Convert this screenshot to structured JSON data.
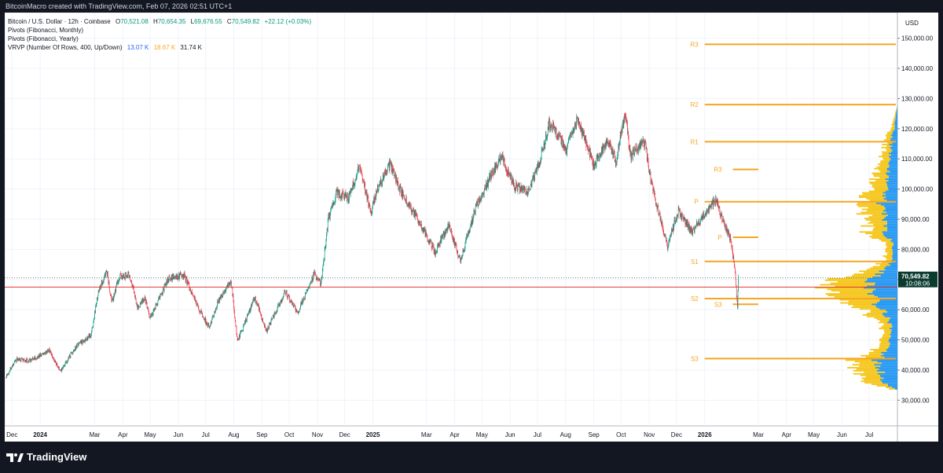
{
  "header": {
    "text": "BitcoinMacro created with TradingView.com, Feb 07, 2026 02:51 UTC+1"
  },
  "legend": {
    "symbol": "Bitcoin / U.S. Dollar · 12h · Coinbase",
    "open_label": "O",
    "open": "70,521.08",
    "high_label": "H",
    "high": "70,654.35",
    "low_label": "L",
    "low": "69,676.55",
    "close_label": "C",
    "close": "70,549.82",
    "change": "+22.12 (+0.03%)",
    "pivots_monthly": "Pivots (Fibonacci, Monthly)",
    "pivots_yearly": "Pivots (Fibonacci, Yearly)",
    "vrvp": "VRVP (Number Of Rows, 400, Up/Down)",
    "vrvp_up": "13.07 K",
    "vrvp_down": "18.67 K",
    "vrvp_total": "31.74 K"
  },
  "footer": {
    "brand": "TradingView"
  },
  "colors": {
    "up": "#089981",
    "down": "#f23645",
    "pivot": "#f5a623",
    "vol_up": "#2196f3",
    "vol_down": "#f5c518"
  },
  "chart_data": {
    "type": "candlestick",
    "currency_label": "USD",
    "y_ticks": [
      30000,
      40000,
      50000,
      60000,
      70000,
      80000,
      90000,
      100000,
      110000,
      120000,
      130000,
      140000,
      150000
    ],
    "y_tick_labels": [
      "30,000.00",
      "40,000.00",
      "50,000.00",
      "60,000.00",
      "70,000.00",
      "80,000.00",
      "90,000.00",
      "100,000.00",
      "110,000.00",
      "120,000.00",
      "130,000.00",
      "140,000.00",
      "150,000.00"
    ],
    "ylim": [
      21500,
      158500
    ],
    "x_ticks": [
      {
        "label": "Dec",
        "date": "2023-12-01",
        "bold": false
      },
      {
        "label": "2024",
        "date": "2024-01-01",
        "bold": true
      },
      {
        "label": "Mar",
        "date": "2024-03-01",
        "bold": false
      },
      {
        "label": "Apr",
        "date": "2024-04-01",
        "bold": false
      },
      {
        "label": "May",
        "date": "2024-05-01",
        "bold": false
      },
      {
        "label": "Jun",
        "date": "2024-06-01",
        "bold": false
      },
      {
        "label": "Jul",
        "date": "2024-07-01",
        "bold": false
      },
      {
        "label": "Aug",
        "date": "2024-08-01",
        "bold": false
      },
      {
        "label": "Sep",
        "date": "2024-09-01",
        "bold": false
      },
      {
        "label": "Oct",
        "date": "2024-10-01",
        "bold": false
      },
      {
        "label": "Nov",
        "date": "2024-11-01",
        "bold": false
      },
      {
        "label": "Dec",
        "date": "2024-12-01",
        "bold": false
      },
      {
        "label": "2025",
        "date": "2025-01-01",
        "bold": true
      },
      {
        "label": "Mar",
        "date": "2025-03-01",
        "bold": false
      },
      {
        "label": "Apr",
        "date": "2025-04-01",
        "bold": false
      },
      {
        "label": "May",
        "date": "2025-05-01",
        "bold": false
      },
      {
        "label": "Jun",
        "date": "2025-06-01",
        "bold": false
      },
      {
        "label": "Jul",
        "date": "2025-07-01",
        "bold": false
      },
      {
        "label": "Aug",
        "date": "2025-08-01",
        "bold": false
      },
      {
        "label": "Sep",
        "date": "2025-09-01",
        "bold": false
      },
      {
        "label": "Oct",
        "date": "2025-10-01",
        "bold": false
      },
      {
        "label": "Nov",
        "date": "2025-11-01",
        "bold": false
      },
      {
        "label": "Dec",
        "date": "2025-12-01",
        "bold": false
      },
      {
        "label": "2026",
        "date": "2026-01-01",
        "bold": true
      },
      {
        "label": "Mar",
        "date": "2026-03-01",
        "bold": false
      },
      {
        "label": "Apr",
        "date": "2026-04-01",
        "bold": false
      },
      {
        "label": "May",
        "date": "2026-05-01",
        "bold": false
      },
      {
        "label": "Jun",
        "date": "2026-06-01",
        "bold": false
      },
      {
        "label": "Jul",
        "date": "2026-07-01",
        "bold": false
      }
    ],
    "x_range": [
      "2023-11-23",
      "2026-08-01"
    ],
    "price_path": [
      {
        "date": "2023-11-24",
        "price": 37500
      },
      {
        "date": "2023-12-06",
        "price": 43500
      },
      {
        "date": "2023-12-20",
        "price": 43000
      },
      {
        "date": "2024-01-11",
        "price": 46500
      },
      {
        "date": "2024-01-23",
        "price": 39500
      },
      {
        "date": "2024-02-10",
        "price": 48000
      },
      {
        "date": "2024-02-26",
        "price": 51500
      },
      {
        "date": "2024-03-05",
        "price": 66000
      },
      {
        "date": "2024-03-14",
        "price": 73000
      },
      {
        "date": "2024-03-20",
        "price": 62500
      },
      {
        "date": "2024-03-28",
        "price": 71000
      },
      {
        "date": "2024-04-08",
        "price": 71500
      },
      {
        "date": "2024-04-17",
        "price": 61000
      },
      {
        "date": "2024-04-25",
        "price": 64000
      },
      {
        "date": "2024-05-01",
        "price": 57000
      },
      {
        "date": "2024-05-21",
        "price": 70500
      },
      {
        "date": "2024-06-07",
        "price": 71500
      },
      {
        "date": "2024-06-24",
        "price": 60000
      },
      {
        "date": "2024-07-05",
        "price": 54000
      },
      {
        "date": "2024-07-15",
        "price": 63000
      },
      {
        "date": "2024-07-29",
        "price": 69500
      },
      {
        "date": "2024-08-05",
        "price": 49500
      },
      {
        "date": "2024-08-24",
        "price": 64000
      },
      {
        "date": "2024-09-06",
        "price": 53000
      },
      {
        "date": "2024-09-27",
        "price": 66000
      },
      {
        "date": "2024-10-10",
        "price": 59000
      },
      {
        "date": "2024-10-29",
        "price": 72000
      },
      {
        "date": "2024-11-05",
        "price": 68500
      },
      {
        "date": "2024-11-13",
        "price": 90000
      },
      {
        "date": "2024-11-22",
        "price": 99000
      },
      {
        "date": "2024-12-05",
        "price": 97000
      },
      {
        "date": "2024-12-17",
        "price": 107000
      },
      {
        "date": "2024-12-30",
        "price": 92500
      },
      {
        "date": "2025-01-07",
        "price": 101000
      },
      {
        "date": "2025-01-20",
        "price": 108000
      },
      {
        "date": "2025-02-01",
        "price": 99000
      },
      {
        "date": "2025-02-25",
        "price": 87000
      },
      {
        "date": "2025-03-10",
        "price": 79000
      },
      {
        "date": "2025-03-26",
        "price": 88000
      },
      {
        "date": "2025-04-07",
        "price": 76000
      },
      {
        "date": "2025-04-24",
        "price": 94000
      },
      {
        "date": "2025-05-22",
        "price": 111000
      },
      {
        "date": "2025-06-05",
        "price": 101000
      },
      {
        "date": "2025-06-22",
        "price": 99000
      },
      {
        "date": "2025-07-03",
        "price": 109000
      },
      {
        "date": "2025-07-14",
        "price": 122000
      },
      {
        "date": "2025-08-02",
        "price": 113000
      },
      {
        "date": "2025-08-14",
        "price": 123500
      },
      {
        "date": "2025-09-01",
        "price": 108000
      },
      {
        "date": "2025-09-17",
        "price": 117000
      },
      {
        "date": "2025-09-25",
        "price": 109000
      },
      {
        "date": "2025-10-06",
        "price": 125500
      },
      {
        "date": "2025-10-11",
        "price": 111000
      },
      {
        "date": "2025-10-27",
        "price": 115500
      },
      {
        "date": "2025-11-04",
        "price": 101000
      },
      {
        "date": "2025-11-21",
        "price": 81000
      },
      {
        "date": "2025-12-03",
        "price": 93000
      },
      {
        "date": "2025-12-18",
        "price": 85500
      },
      {
        "date": "2026-01-05",
        "price": 93500
      },
      {
        "date": "2026-01-14",
        "price": 97000
      },
      {
        "date": "2026-01-21",
        "price": 89000
      },
      {
        "date": "2026-01-29",
        "price": 84000
      },
      {
        "date": "2026-02-03",
        "price": 74000
      },
      {
        "date": "2026-02-06",
        "price": 61000
      },
      {
        "date": "2026-02-07",
        "price": 70549.82
      }
    ],
    "last_price_label": "70,549.82",
    "countdown_label": "10:08:06",
    "dotted_line_price": 70549.82,
    "red_line_price": 67500,
    "yearly_pivots": [
      {
        "label": "R3",
        "price": 148000
      },
      {
        "label": "R2",
        "price": 128000
      },
      {
        "label": "R1",
        "price": 115700
      },
      {
        "label": "P",
        "price": 95800
      },
      {
        "label": "S1",
        "price": 76000
      },
      {
        "label": "S2",
        "price": 63700
      },
      {
        "label": "S3",
        "price": 43800
      }
    ],
    "monthly_pivots": [
      {
        "label": "R3",
        "price": 106500
      },
      {
        "label": "P",
        "price": 84000
      },
      {
        "label": "S3",
        "price": 61800
      }
    ],
    "volume_profile": {
      "nodes": [
        {
          "price": 36000,
          "up": 30,
          "down": 40
        },
        {
          "price": 40000,
          "up": 35,
          "down": 45
        },
        {
          "price": 43000,
          "up": 45,
          "down": 55
        },
        {
          "price": 47000,
          "up": 20,
          "down": 25
        },
        {
          "price": 52000,
          "up": 12,
          "down": 15
        },
        {
          "price": 57000,
          "up": 18,
          "down": 25
        },
        {
          "price": 61000,
          "up": 40,
          "down": 55
        },
        {
          "price": 64500,
          "up": 60,
          "down": 75
        },
        {
          "price": 68000,
          "up": 65,
          "down": 95
        },
        {
          "price": 71500,
          "up": 40,
          "down": 50
        },
        {
          "price": 76000,
          "up": 10,
          "down": 15
        },
        {
          "price": 82000,
          "up": 10,
          "down": 15
        },
        {
          "price": 86000,
          "up": 30,
          "down": 40
        },
        {
          "price": 90000,
          "up": 25,
          "down": 35
        },
        {
          "price": 95500,
          "up": 35,
          "down": 55
        },
        {
          "price": 100000,
          "up": 20,
          "down": 30
        },
        {
          "price": 105000,
          "up": 20,
          "down": 25
        },
        {
          "price": 109000,
          "up": 15,
          "down": 20
        },
        {
          "price": 113000,
          "up": 15,
          "down": 15
        },
        {
          "price": 117000,
          "up": 12,
          "down": 12
        },
        {
          "price": 121000,
          "up": 6,
          "down": 6
        },
        {
          "price": 124000,
          "up": 3,
          "down": 3
        }
      ]
    }
  }
}
